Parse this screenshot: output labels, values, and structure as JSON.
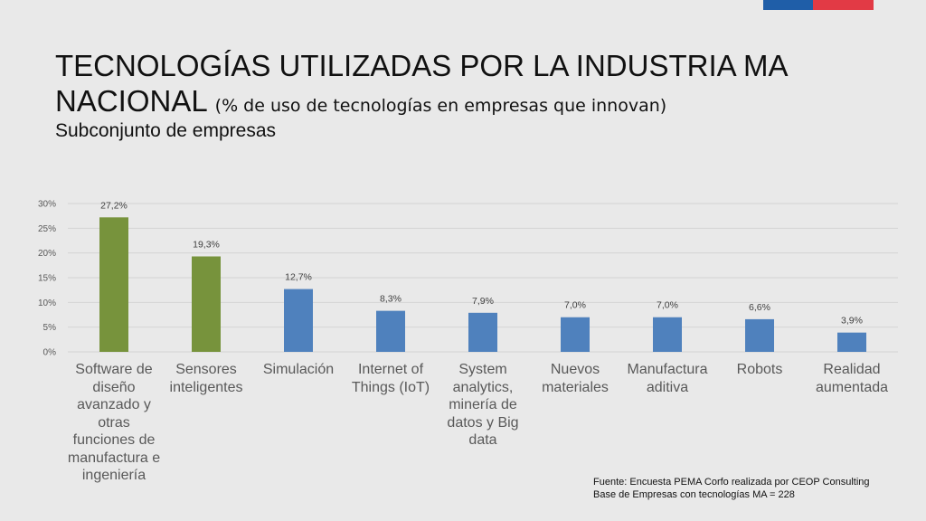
{
  "brand": {
    "blue": "#1f5ea8",
    "red": "#e23a45"
  },
  "title": {
    "main_line1": "TECNOLOGÍAS UTILIZADAS POR LA INDUSTRIA MA",
    "main_line2": "NACIONAL ",
    "paren": "(% de uso de tecnologías en empresas que innovan)",
    "subtitle": "Subconjunto de empresas"
  },
  "chart_data": {
    "type": "bar",
    "title": "TECNOLOGÍAS UTILIZADAS POR LA INDUSTRIA MA NACIONAL (% de uso de tecnologías en empresas que innovan)",
    "xlabel": "",
    "ylabel": "",
    "ylim": [
      0,
      30
    ],
    "grid": true,
    "yticks": [
      0,
      5,
      10,
      15,
      20,
      25,
      30
    ],
    "ytick_labels": [
      "0%",
      "5%",
      "10%",
      "15%",
      "20%",
      "25%",
      "30%"
    ],
    "categories": [
      "Software de diseño avanzado y otras funciones de manufactura e ingeniería",
      "Sensores inteligentes",
      "Simulación",
      "Internet of Things (IoT)",
      "System analytics, minería de datos y Big data",
      "Nuevos materiales",
      "Manufactura aditiva",
      "Robots",
      "Realidad aumentada"
    ],
    "values": [
      27.2,
      19.3,
      12.7,
      8.3,
      7.9,
      7.0,
      7.0,
      6.6,
      3.9
    ],
    "value_labels": [
      "27,2%",
      "19,3%",
      "12,7%",
      "8,3%",
      "7,9%",
      "7,0%",
      "7,0%",
      "6,6%",
      "3,9%"
    ],
    "bar_colors": [
      "#77933c",
      "#77933c",
      "#4f81bd",
      "#4f81bd",
      "#4f81bd",
      "#4f81bd",
      "#4f81bd",
      "#4f81bd",
      "#4f81bd"
    ]
  },
  "source": {
    "line1": "Fuente: Encuesta PEMA Corfo realizada por CEOP Consulting",
    "line2": "Base de Empresas con tecnologías MA = 228"
  }
}
